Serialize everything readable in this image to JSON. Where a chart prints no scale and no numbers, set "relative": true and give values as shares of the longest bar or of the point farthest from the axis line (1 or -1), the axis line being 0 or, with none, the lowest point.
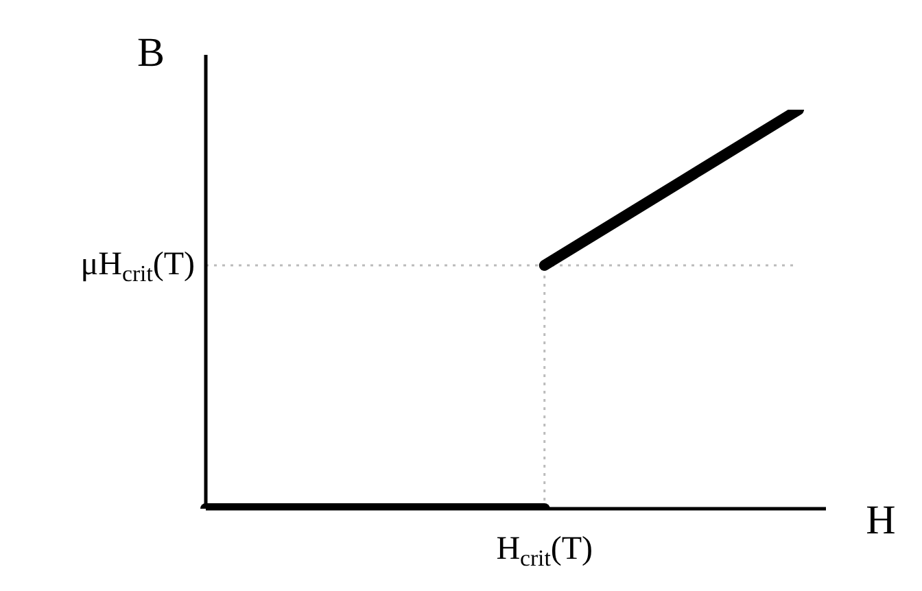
{
  "chart_data": {
    "type": "line",
    "relative": true,
    "xlabel": "H",
    "ylabel": "B",
    "categories": [
      null,
      null,
      null,
      null,
      null,
      null,
      null,
      null
    ],
    "series": [
      {
        "color": "#000000",
        "values": [
          0,
          0,
          0,
          0,
          0,
          null,
          null,
          null
        ]
      },
      {
        "color": "#000000",
        "values": [
          null,
          null,
          null,
          null,
          0.61,
          0.74,
          0.87,
          1
        ]
      }
    ],
    "ref_lines": [
      {
        "axis": "y",
        "value": 0.61,
        "label": "μH$_{crit}$(T)",
        "color": "#bbbbbb",
        "line_style": "dotted"
      }
    ],
    "annotations": [
      "H$_{crit}$(T)"
    ],
    "grid": false,
    "legend": false,
    "marker": "none",
    "line_style": "solid"
  }
}
